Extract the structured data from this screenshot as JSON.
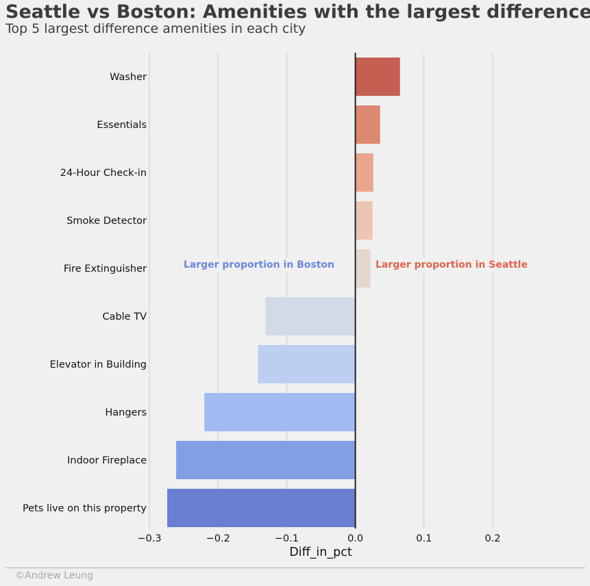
{
  "title": "Seattle vs Boston: Amenities with the largest difference",
  "subtitle": "Top 5 largest difference amenities in each city",
  "copyright": "©Andrew Leung",
  "chart_data": {
    "type": "bar",
    "orientation": "horizontal",
    "categories": [
      "Washer",
      "Essentials",
      "24-Hour Check-in",
      "Smoke Detector",
      "Fire Extinguisher",
      "Cable TV",
      "Elevator in Building",
      "Hangers",
      "Indoor Fireplace",
      "Pets live on this property"
    ],
    "values": [
      0.065,
      0.036,
      0.026,
      0.025,
      0.022,
      -0.131,
      -0.142,
      -0.22,
      -0.261,
      -0.274
    ],
    "bar_colors": [
      "#c45f52",
      "#dd8870",
      "#e9a68d",
      "#ecc5b4",
      "#e4d7d0",
      "#d3d9e6",
      "#bccff2",
      "#a1bbf2",
      "#849ee6",
      "#6a7fd1"
    ],
    "xlabel": "Diff_in_pct",
    "ylabel": "",
    "xlim": [
      -0.3,
      0.2
    ],
    "xticks": [
      "−0.3",
      "−0.2",
      "−0.1",
      "0.0",
      "0.1",
      "0.2"
    ],
    "xtick_values": [
      -0.3,
      -0.2,
      -0.1,
      0.0,
      0.1,
      0.2
    ],
    "grid": "vertical",
    "annotations": [
      {
        "text": "Larger proportion in Boston",
        "color": "#6b86e0"
      },
      {
        "text": "Larger proportion in Seattle",
        "color": "#e0634a"
      }
    ]
  }
}
